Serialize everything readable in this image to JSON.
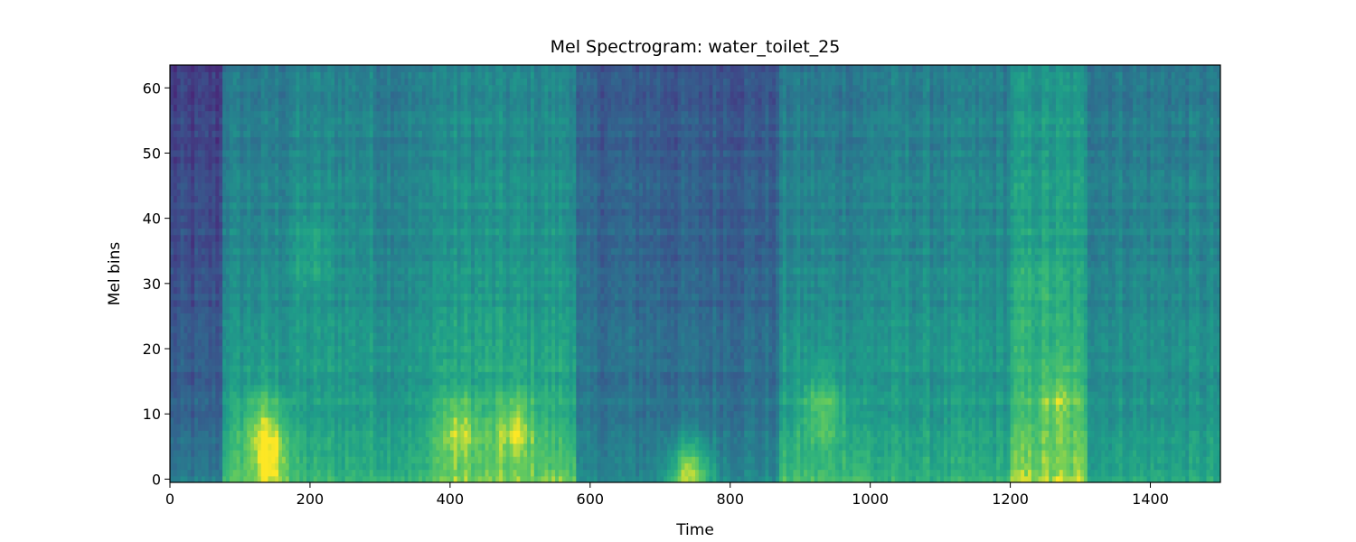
{
  "chart_data": {
    "type": "heatmap",
    "title": "Mel Spectrogram: water_toilet_25",
    "xlabel": "Time",
    "ylabel": "Mel bins",
    "xlim": [
      0,
      1500
    ],
    "ylim": [
      -0.5,
      63.5
    ],
    "x_ticks": [
      0,
      200,
      400,
      600,
      800,
      1000,
      1200,
      1400
    ],
    "y_ticks": [
      0,
      10,
      20,
      30,
      40,
      50,
      60
    ],
    "colormap": "viridis",
    "grid": false,
    "segments": [
      {
        "x": [
          0,
          75
        ],
        "level": 0.3,
        "low_boost": 0.15
      },
      {
        "x": [
          75,
          170
        ],
        "level": 0.56,
        "low_boost": 0.22
      },
      {
        "x": [
          170,
          290
        ],
        "level": 0.6,
        "low_boost": 0.12
      },
      {
        "x": [
          290,
          370
        ],
        "level": 0.57,
        "low_boost": 0.15
      },
      {
        "x": [
          370,
          580
        ],
        "level": 0.62,
        "low_boost": 0.22
      },
      {
        "x": [
          580,
          700
        ],
        "level": 0.42,
        "low_boost": 0.08
      },
      {
        "x": [
          700,
          870
        ],
        "level": 0.4,
        "low_boost": 0.12
      },
      {
        "x": [
          870,
          1000
        ],
        "level": 0.55,
        "low_boost": 0.22
      },
      {
        "x": [
          1000,
          1200
        ],
        "level": 0.58,
        "low_boost": 0.12
      },
      {
        "x": [
          1200,
          1310
        ],
        "level": 0.68,
        "low_boost": 0.22
      },
      {
        "x": [
          1310,
          1500
        ],
        "level": 0.56,
        "low_boost": 0.1
      }
    ],
    "hotspots": [
      {
        "x": 130,
        "y": 9,
        "value": 0.8
      },
      {
        "x": 140,
        "y": 3,
        "value": 0.82
      },
      {
        "x": 200,
        "y": 35,
        "value": 0.72
      },
      {
        "x": 410,
        "y": 8,
        "value": 0.84
      },
      {
        "x": 490,
        "y": 8,
        "value": 0.86
      },
      {
        "x": 740,
        "y": 1,
        "value": 0.85
      },
      {
        "x": 930,
        "y": 11,
        "value": 0.78
      },
      {
        "x": 1265,
        "y": 12,
        "value": 0.84
      },
      {
        "x": 1240,
        "y": 30,
        "value": 0.76
      }
    ]
  }
}
